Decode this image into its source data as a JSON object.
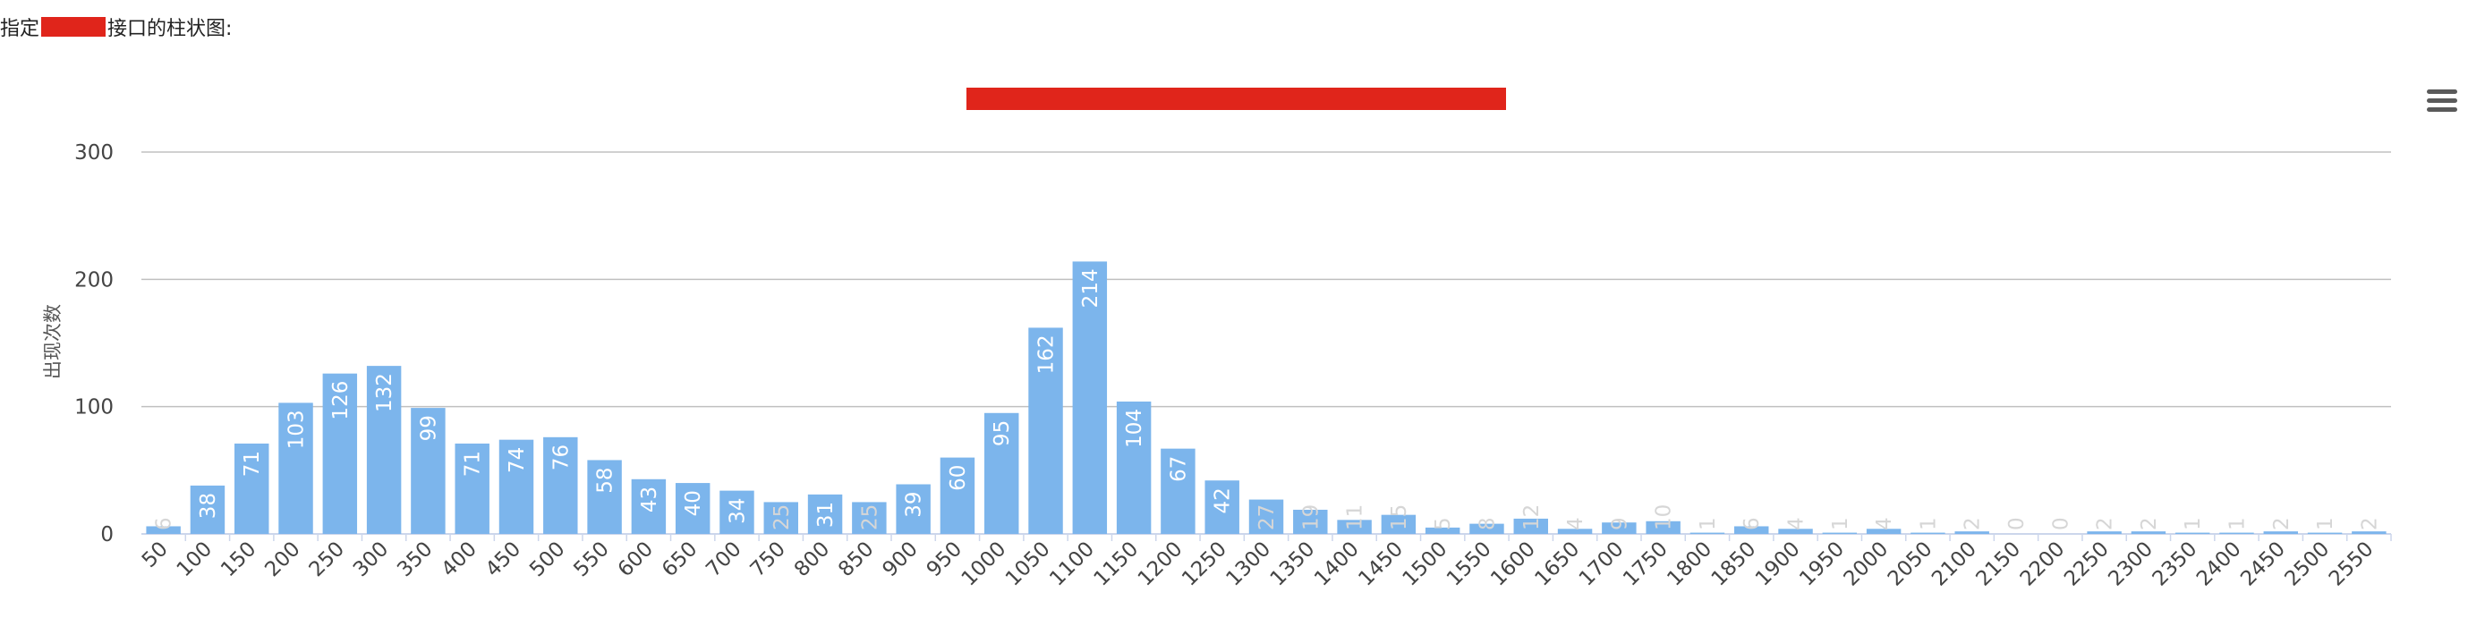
{
  "intro": {
    "prefix": "指定",
    "suffix": "接口的柱状图:"
  },
  "icons": {
    "menu": "hamburger-menu-icon"
  },
  "colors": {
    "bar": "#7cb5ec",
    "redaction": "#e0251b",
    "grid": "#c0c0c0"
  },
  "chart_data": {
    "type": "bar",
    "title": "",
    "xlabel": "",
    "ylabel": "出现次数",
    "ylim": [
      0,
      300
    ],
    "yticks": [
      0,
      100,
      200,
      300
    ],
    "grid": true,
    "legend": "none",
    "data_labels": "inside-top, rotated",
    "categories": [
      "50",
      "100",
      "150",
      "200",
      "250",
      "300",
      "350",
      "400",
      "450",
      "500",
      "550",
      "600",
      "650",
      "700",
      "750",
      "800",
      "850",
      "900",
      "950",
      "1000",
      "1050",
      "1100",
      "1150",
      "1200",
      "1250",
      "1300",
      "1350",
      "1400",
      "1450",
      "1500",
      "1550",
      "1600",
      "1650",
      "1700",
      "1750",
      "1800",
      "1850",
      "1900",
      "1950",
      "2000",
      "2050",
      "2100",
      "2150",
      "2200",
      "2250",
      "2300",
      "2350",
      "2400",
      "2450",
      "2500",
      "2550"
    ],
    "values": [
      6,
      38,
      71,
      103,
      126,
      132,
      99,
      71,
      74,
      76,
      58,
      43,
      40,
      34,
      25,
      31,
      25,
      39,
      60,
      95,
      162,
      214,
      104,
      67,
      42,
      27,
      19,
      11,
      15,
      5,
      8,
      12,
      4,
      9,
      10,
      1,
      6,
      4,
      1,
      4,
      1,
      2,
      0,
      0,
      2,
      2,
      1,
      1,
      2,
      1,
      2
    ]
  }
}
